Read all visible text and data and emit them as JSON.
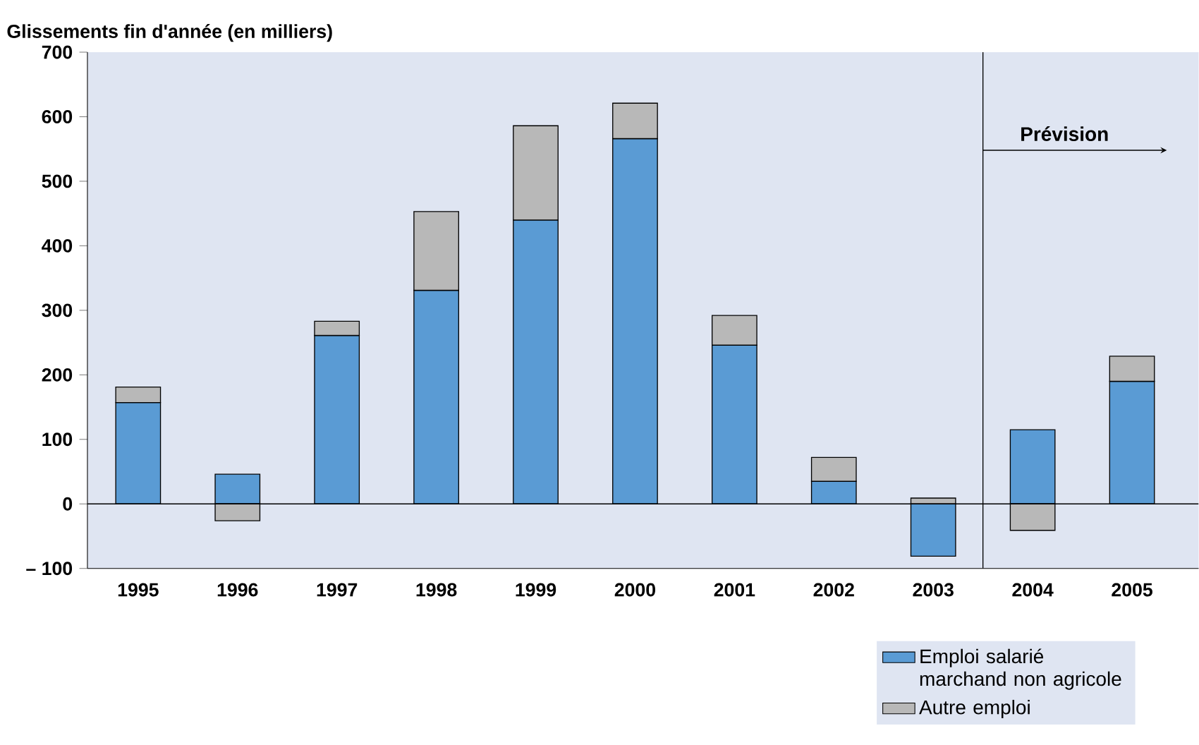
{
  "chart_data": {
    "type": "bar",
    "stacked": true,
    "ylabel": "Glissements fin d'année (en milliers)",
    "categories": [
      "1995",
      "1996",
      "1997",
      "1998",
      "1999",
      "2000",
      "2001",
      "2002",
      "2003",
      "2004",
      "2005"
    ],
    "series": [
      {
        "name": "Emploi salarié marchand non agricole",
        "color": "#5a9bd4",
        "values": [
          157,
          46,
          261,
          331,
          440,
          566,
          246,
          35,
          -81,
          115,
          190
        ]
      },
      {
        "name": "Autre emploi",
        "color": "#b8b8b8",
        "values": [
          24,
          -26,
          22,
          122,
          146,
          55,
          46,
          37,
          9,
          -41,
          39
        ]
      }
    ],
    "ylim": [
      -100,
      700
    ],
    "yticks": [
      {
        "value": -100,
        "label": "– 100"
      },
      0,
      100,
      200,
      300,
      400,
      500,
      600,
      700
    ],
    "annotations": [
      "Prévision"
    ],
    "legend": "bottom right"
  }
}
